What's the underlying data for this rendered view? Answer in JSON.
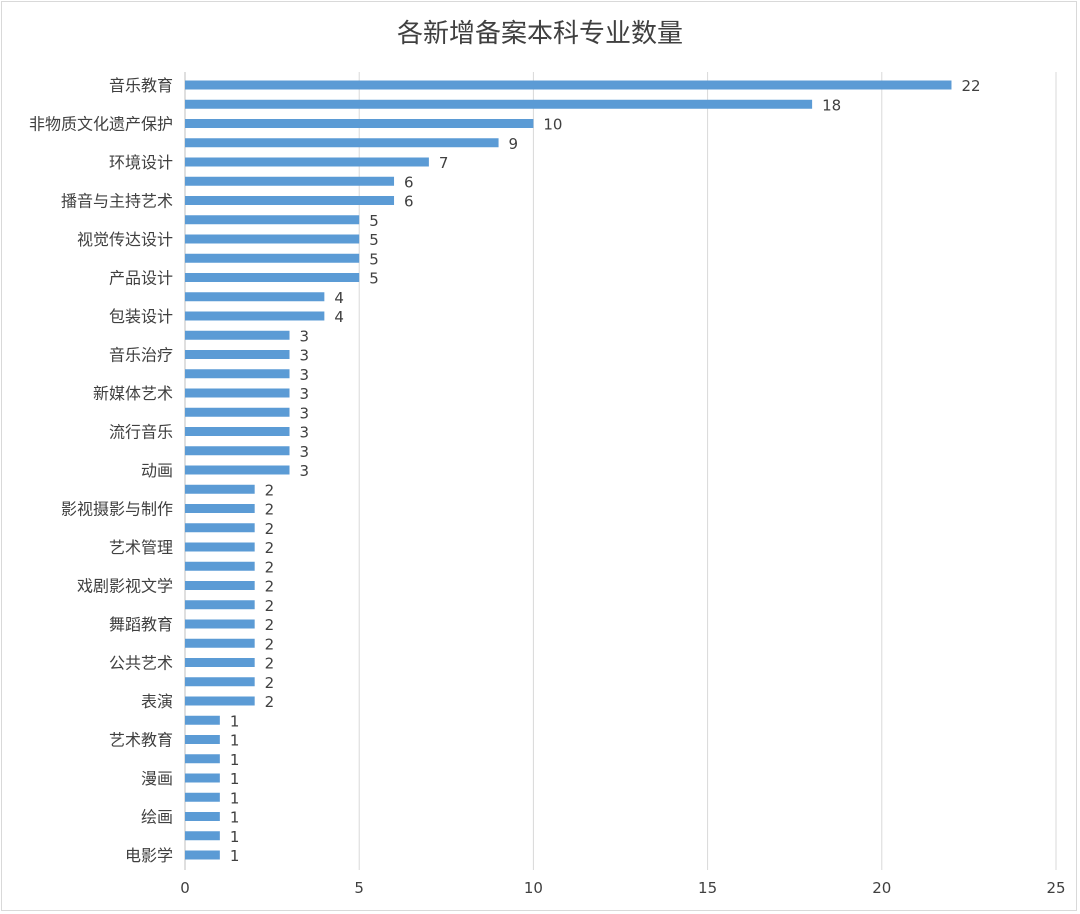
{
  "chart_data": {
    "type": "bar",
    "orientation": "horizontal",
    "title": "各新增备案本科专业数量",
    "xlabel": "",
    "ylabel": "",
    "xlim": [
      0,
      25
    ],
    "xticks": [
      0,
      5,
      10,
      15,
      20,
      25
    ],
    "grid": true,
    "legend": "none",
    "bar_color": "#5b9bd5",
    "categories": [
      "音乐教育",
      "",
      "非物质文化遗产保护",
      "",
      "环境设计",
      "",
      "播音与主持艺术",
      "",
      "视觉传达设计",
      "",
      "产品设计",
      "",
      "包装设计",
      "",
      "音乐治疗",
      "",
      "新媒体艺术",
      "",
      "流行音乐",
      "",
      "动画",
      "",
      "影视摄影与制作",
      "",
      "艺术管理",
      "",
      "戏剧影视文学",
      "",
      "舞蹈教育",
      "",
      "公共艺术",
      "",
      "表演",
      "",
      "艺术教育",
      "",
      "漫画",
      "",
      "绘画",
      "",
      "电影学"
    ],
    "values": [
      22,
      18,
      10,
      9,
      7,
      6,
      6,
      5,
      5,
      5,
      5,
      4,
      4,
      3,
      3,
      3,
      3,
      3,
      3,
      3,
      3,
      2,
      2,
      2,
      2,
      2,
      2,
      2,
      2,
      2,
      2,
      2,
      2,
      1,
      1,
      1,
      1,
      1,
      1,
      1,
      1
    ]
  }
}
